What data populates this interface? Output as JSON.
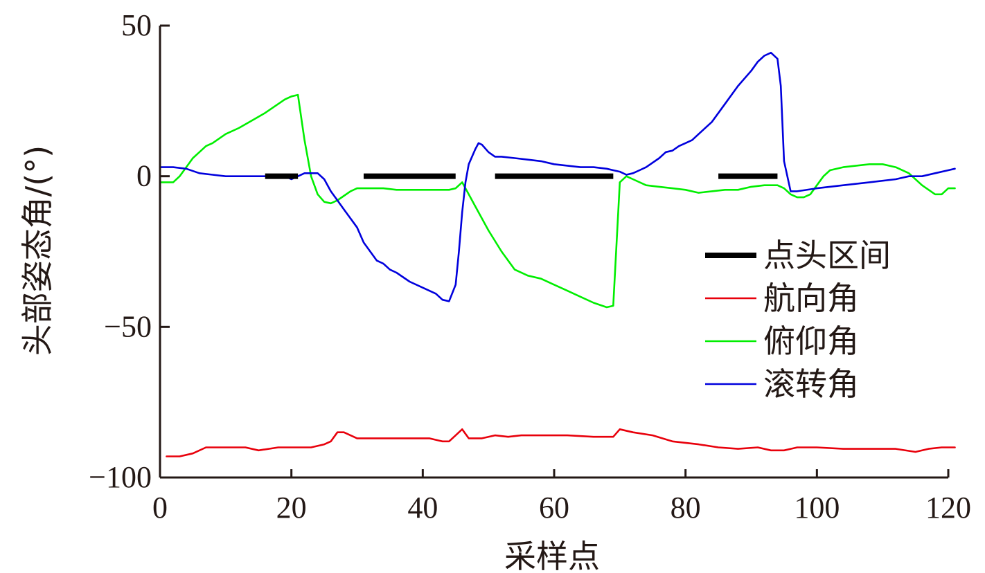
{
  "chart_data": {
    "type": "line",
    "title": "",
    "xlabel": "采样点",
    "ylabel": "头部姿态角/(°)",
    "xlim": [
      0,
      120
    ],
    "ylim": [
      -100,
      50
    ],
    "xticks": [
      0,
      20,
      40,
      60,
      80,
      100,
      120
    ],
    "yticks": [
      -100,
      -50,
      0,
      50
    ],
    "xtick_labels": [
      "0",
      "20",
      "40",
      "60",
      "80",
      "100",
      "120"
    ],
    "ytick_labels": [
      "−100",
      "−50",
      "0",
      "50"
    ],
    "grid": false,
    "legend_position": "right",
    "axis_color": "#231815",
    "nod_intervals": {
      "name": "点头区间",
      "color": "#000000",
      "y": 0,
      "ranges": [
        [
          16,
          21
        ],
        [
          31,
          45
        ],
        [
          51,
          69
        ],
        [
          85,
          94
        ]
      ]
    },
    "series": [
      {
        "name": "航向角",
        "color": "#e8000b",
        "x": [
          1,
          3,
          5,
          7,
          10,
          13,
          15,
          18,
          21,
          23,
          25,
          26,
          27,
          28,
          30,
          33,
          36,
          39,
          41,
          43,
          44,
          45,
          46,
          47,
          49,
          51,
          53,
          55,
          58,
          62,
          66,
          69,
          70,
          72,
          75,
          78,
          82,
          85,
          88,
          91,
          93,
          95,
          97,
          100,
          104,
          108,
          112,
          115,
          117,
          119,
          121
        ],
        "values": [
          -93,
          -93,
          -92,
          -90,
          -90,
          -90,
          -91,
          -90,
          -90,
          -90,
          -89,
          -88,
          -85,
          -85,
          -87,
          -87,
          -87,
          -87,
          -87,
          -88,
          -88,
          -86,
          -84,
          -87,
          -87,
          -86,
          -86.5,
          -86,
          -86,
          -86,
          -86.5,
          -86.5,
          -84,
          -85,
          -86,
          -88,
          -89,
          -90,
          -90.5,
          -90,
          -91,
          -91,
          -90,
          -90,
          -90.5,
          -90.5,
          -90.5,
          -91.5,
          -90.5,
          -90,
          -90
        ]
      },
      {
        "name": "俯仰角",
        "color": "#00ee00",
        "x": [
          0,
          1,
          2,
          3,
          4,
          5,
          6,
          7,
          8,
          10,
          12,
          14,
          16,
          18,
          19,
          20,
          21,
          22,
          23,
          24,
          25,
          26,
          27,
          28,
          29,
          30,
          31,
          32,
          34,
          36,
          38,
          40,
          42,
          44,
          45,
          46,
          47,
          48,
          50,
          52,
          54,
          56,
          58,
          60,
          62,
          64,
          66,
          68,
          69,
          70,
          71,
          72,
          74,
          76,
          78,
          80,
          82,
          84,
          86,
          88,
          90,
          92,
          94,
          95,
          96,
          97,
          98,
          99,
          100,
          101,
          102,
          104,
          106,
          108,
          110,
          112,
          114,
          116,
          118,
          119,
          120,
          121
        ],
        "values": [
          -2,
          -2,
          -2,
          0,
          3,
          6,
          8,
          10,
          11,
          14,
          16,
          18.5,
          21,
          24,
          25.5,
          26.5,
          27,
          12,
          0,
          -6,
          -8.5,
          -9,
          -8,
          -6.5,
          -5,
          -4,
          -4,
          -4,
          -4,
          -4.5,
          -4.5,
          -4.5,
          -4.5,
          -4.5,
          -4,
          -2,
          -6,
          -10,
          -18,
          -25,
          -31,
          -33,
          -34,
          -36,
          -38,
          -40,
          -42,
          -43.5,
          -43,
          -2,
          0,
          -1,
          -3,
          -3.5,
          -4,
          -4.5,
          -5.5,
          -5,
          -4.5,
          -4.5,
          -3.5,
          -3,
          -3,
          -4,
          -6,
          -7,
          -7,
          -6,
          -3,
          0,
          2,
          3,
          3.5,
          4,
          4,
          3,
          1,
          -3,
          -6,
          -6,
          -4,
          -4
        ]
      },
      {
        "name": "滚转角",
        "color": "#0000dd",
        "x": [
          0,
          2,
          4,
          6,
          8,
          10,
          12,
          14,
          16,
          18,
          19,
          20,
          21,
          22,
          23,
          24,
          25,
          26,
          27,
          28,
          29,
          30,
          31,
          32,
          33,
          34,
          35,
          36,
          38,
          40,
          42,
          43,
          44,
          45,
          45.5,
          46,
          46.5,
          47,
          48,
          48.5,
          49,
          50,
          51,
          52,
          54,
          56,
          58,
          60,
          62,
          64,
          66,
          68,
          69,
          70,
          71,
          72,
          73,
          74,
          76,
          77,
          78,
          79,
          80,
          81,
          82,
          84,
          86,
          88,
          90,
          91,
          92,
          93,
          94,
          94.5,
          95,
          96,
          97,
          100,
          104,
          108,
          112,
          114,
          116,
          118,
          120,
          121
        ],
        "values": [
          3,
          3,
          2.5,
          1,
          0.5,
          0,
          0,
          0,
          0,
          0,
          0,
          -1,
          0,
          1,
          1,
          1,
          -1,
          -5,
          -8,
          -11,
          -14,
          -17,
          -22,
          -25,
          -28,
          -29,
          -31,
          -32,
          -35,
          -37,
          -39,
          -41,
          -41.5,
          -36,
          -25,
          -12,
          -2,
          4,
          9,
          11,
          10.5,
          8,
          6.5,
          6.5,
          6,
          5.5,
          5,
          4,
          3.5,
          3,
          3,
          2.5,
          2,
          1.5,
          0.5,
          1,
          2,
          3,
          6,
          8,
          8.5,
          10,
          11,
          12,
          14,
          18,
          24,
          30,
          35,
          38,
          40,
          41,
          39,
          30,
          5,
          -5,
          -5,
          -4,
          -3,
          -2,
          -1,
          0,
          0,
          1,
          2,
          2.5
        ]
      }
    ]
  }
}
